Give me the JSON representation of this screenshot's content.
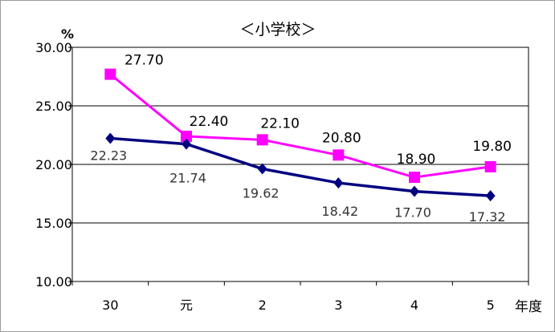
{
  "chart_data": {
    "type": "line",
    "title": "＜小学校＞",
    "ylabel": "%",
    "xlabel": "年度",
    "ylim": [
      10,
      30
    ],
    "yticks": [
      "10.00",
      "15.00",
      "20.00",
      "25.00",
      "30.00"
    ],
    "categories": [
      "30",
      "元",
      "2",
      "3",
      "4",
      "5"
    ],
    "grid": true,
    "legend": "none",
    "series": [
      {
        "values": [
          27.7,
          22.4,
          22.1,
          20.8,
          18.9,
          19.8
        ],
        "labels": [
          "27.70",
          "22.40",
          "22.10",
          "20.80",
          "18.90",
          "19.80"
        ],
        "color": "#ff00ff",
        "marker": "square"
      },
      {
        "values": [
          22.23,
          21.74,
          19.62,
          18.42,
          17.7,
          17.32
        ],
        "labels": [
          "22.23",
          "21.74",
          "19.62",
          "18.42",
          "17.70",
          "17.32"
        ],
        "color": "#000080",
        "marker": "diamond"
      }
    ]
  }
}
